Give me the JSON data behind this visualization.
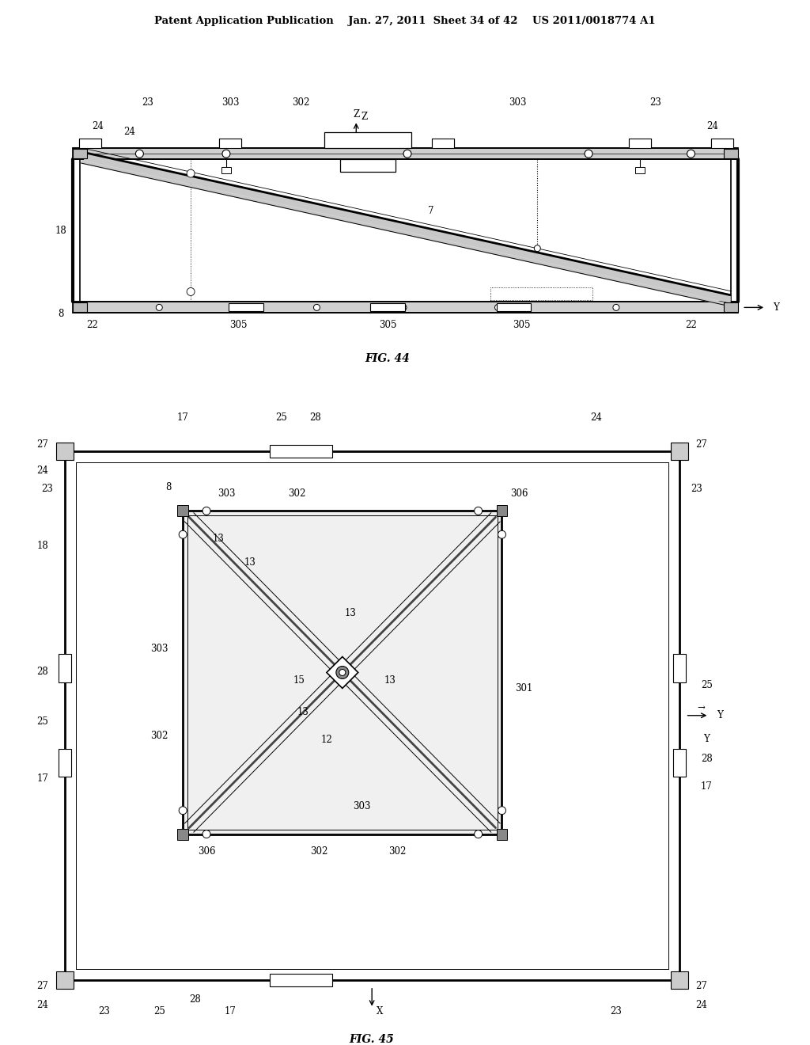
{
  "bg_color": "#ffffff",
  "line_color": "#000000",
  "header_text": "Patent Application Publication    Jan. 27, 2011  Sheet 34 of 42    US 2011/0018774 A1",
  "fig44_label": "FIG. 44",
  "fig45_label": "FIG. 45"
}
